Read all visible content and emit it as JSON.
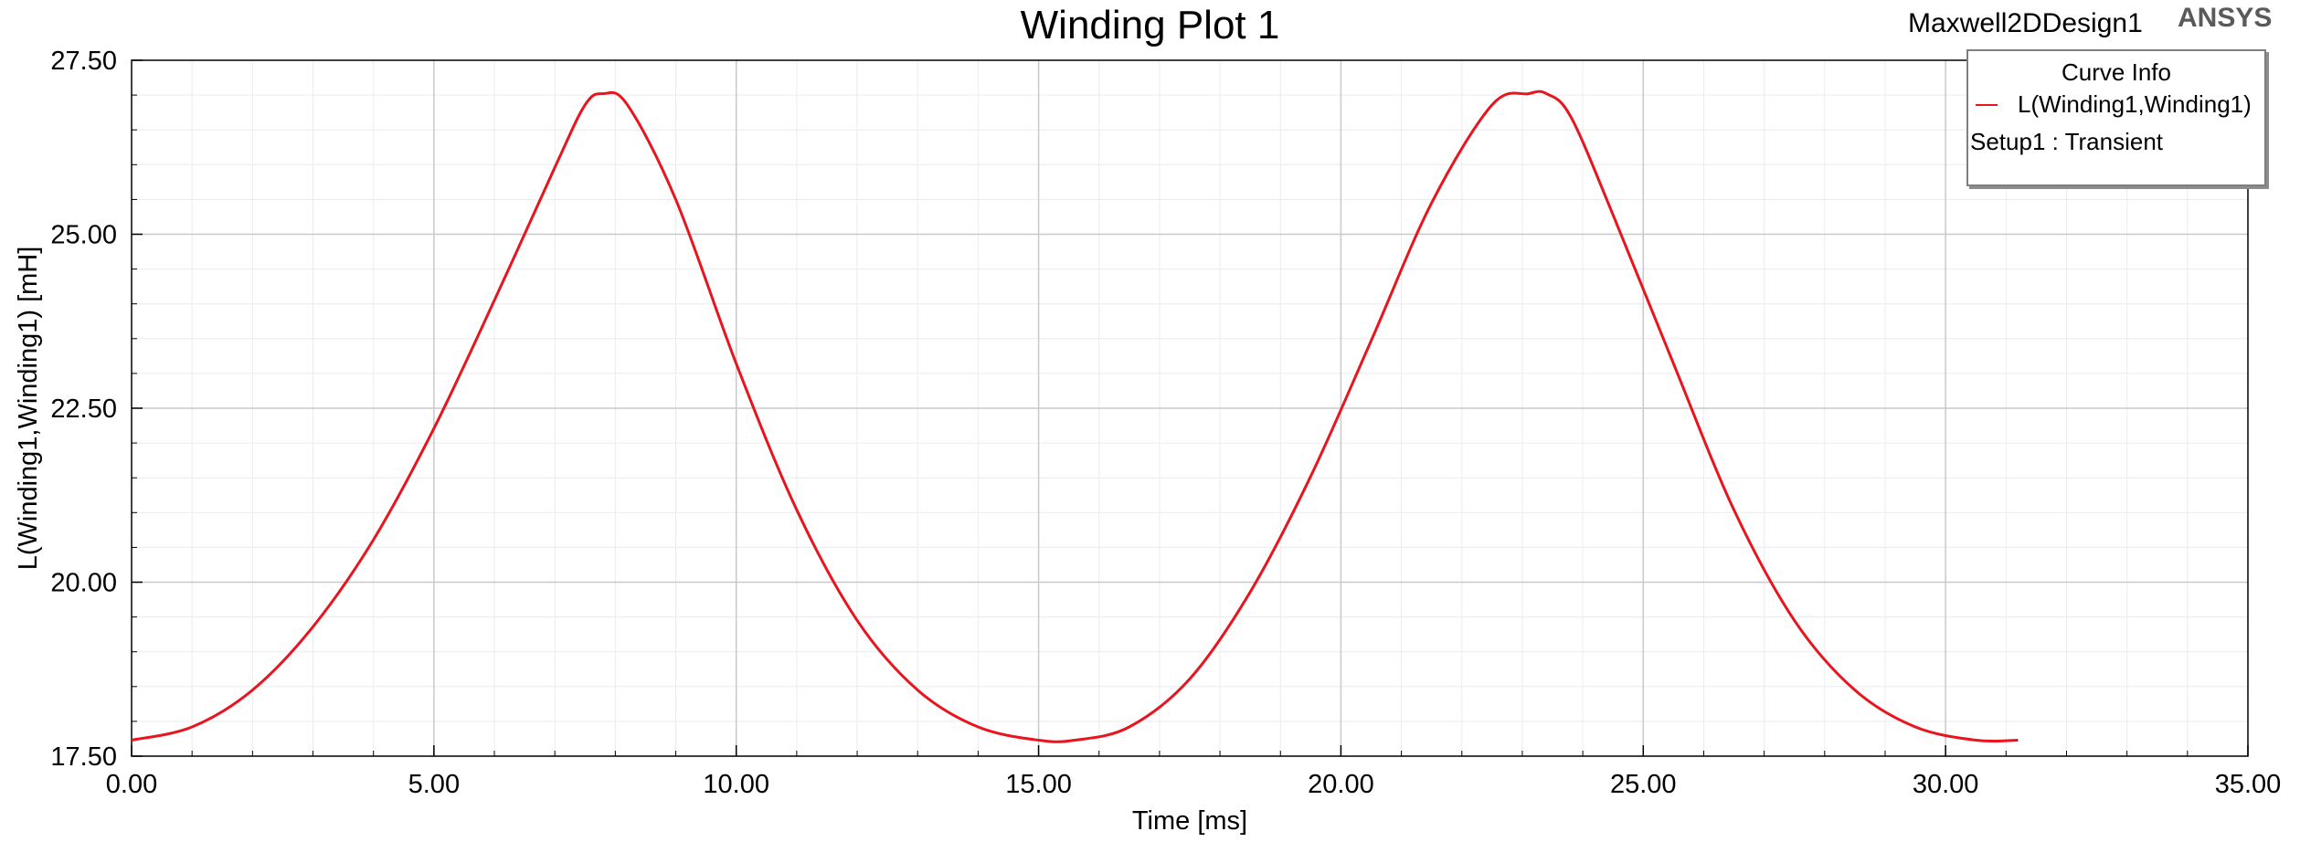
{
  "header": {
    "title": "Winding Plot 1",
    "design_name": "Maxwell2DDesign1",
    "brand": "ANSYS"
  },
  "legend": {
    "title": "Curve Info",
    "series_label": "L(Winding1,Winding1)",
    "setup_label": "Setup1 : Transient"
  },
  "chart_data": {
    "type": "line",
    "title": "Winding Plot 1",
    "xlabel": "Time [ms]",
    "ylabel": "L(Winding1,Winding1) [mH]",
    "xlim": [
      0,
      35
    ],
    "ylim": [
      17.5,
      27.5
    ],
    "xticks": [
      "0.00",
      "5.00",
      "10.00",
      "15.00",
      "20.00",
      "25.00",
      "30.00",
      "35.00"
    ],
    "yticks": [
      "17.50",
      "20.00",
      "22.50",
      "25.00",
      "27.50"
    ],
    "grid": true,
    "legend_position": "top-right",
    "series": [
      {
        "name": "L(Winding1,Winding1)",
        "color": "#e8141e",
        "x": [
          0,
          1,
          2,
          3,
          4,
          5,
          6,
          7,
          7.5,
          7.8,
          8.2,
          9,
          10,
          11,
          12,
          13,
          14,
          15,
          15.6,
          16.5,
          17.5,
          18.5,
          19.5,
          20.5,
          21.5,
          22.5,
          23.1,
          23.4,
          23.8,
          24.5,
          25.5,
          26.5,
          27.5,
          28.5,
          29.5,
          30.5,
          31.2
        ],
        "values": [
          17.73,
          17.92,
          18.45,
          19.36,
          20.61,
          22.21,
          24.05,
          25.96,
          26.86,
          27.02,
          26.86,
          25.5,
          23.14,
          21.04,
          19.45,
          18.45,
          17.92,
          17.73,
          17.73,
          17.92,
          18.61,
          19.86,
          21.52,
          23.47,
          25.45,
          26.86,
          27.02,
          27.02,
          26.69,
          25.28,
          23.14,
          21.04,
          19.45,
          18.45,
          17.92,
          17.73,
          17.73
        ]
      }
    ]
  }
}
